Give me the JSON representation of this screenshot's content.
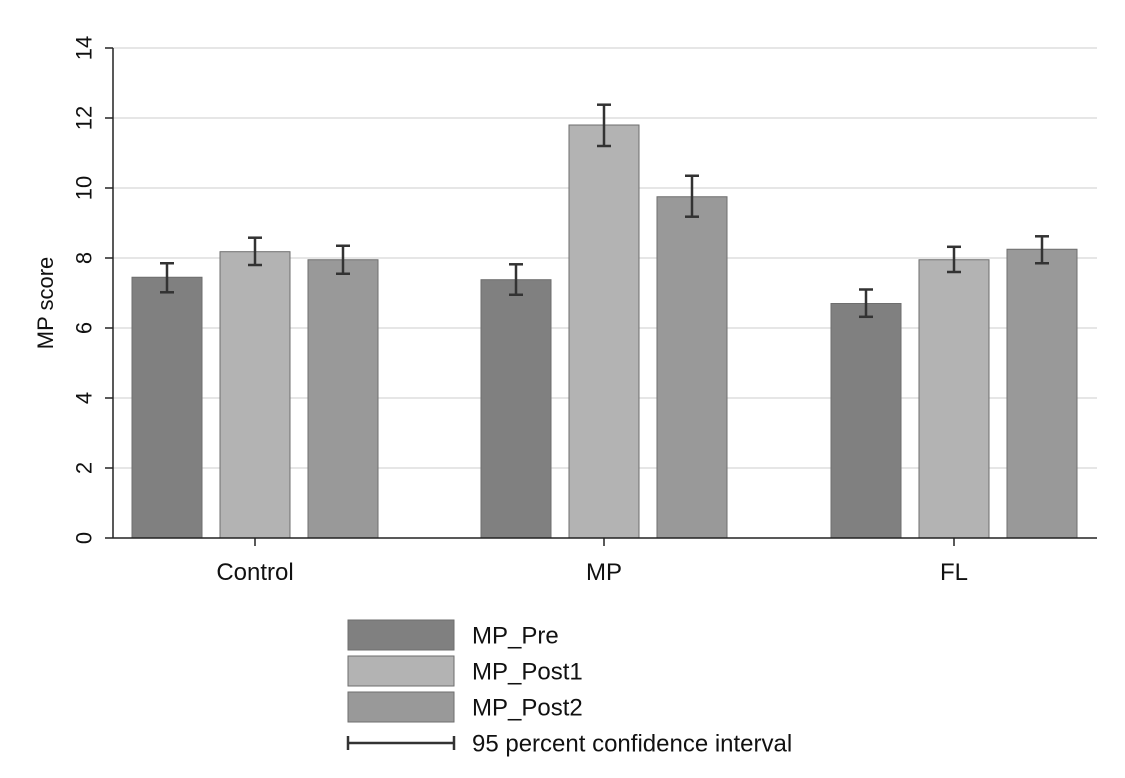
{
  "chart_data": {
    "type": "bar",
    "ylabel": "MP score",
    "xlabel": "",
    "ylim": [
      0,
      14
    ],
    "yticks": [
      0,
      2,
      4,
      6,
      8,
      10,
      12,
      14
    ],
    "grid": true,
    "categories": [
      "Control",
      "MP",
      "FL"
    ],
    "series": [
      {
        "name": "MP_Pre",
        "color": "#808080",
        "values": [
          7.45,
          7.38,
          6.7
        ],
        "ci_low": [
          7.02,
          6.95,
          6.32
        ],
        "ci_high": [
          7.85,
          7.82,
          7.1
        ]
      },
      {
        "name": "MP_Post1",
        "color": "#b3b3b3",
        "values": [
          8.18,
          11.8,
          7.95
        ],
        "ci_low": [
          7.8,
          11.2,
          7.6
        ],
        "ci_high": [
          8.58,
          12.38,
          8.32
        ]
      },
      {
        "name": "MP_Post2",
        "color": "#999999",
        "values": [
          7.95,
          9.75,
          8.25
        ],
        "ci_low": [
          7.55,
          9.18,
          7.85
        ],
        "ci_high": [
          8.35,
          10.35,
          8.62
        ]
      }
    ],
    "ci_legend_label": "95 percent confidence interval",
    "legend_position": "bottom"
  }
}
